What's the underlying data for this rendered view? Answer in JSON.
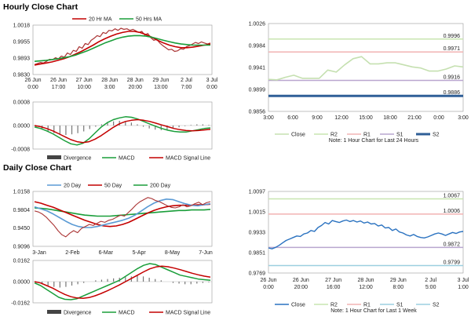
{
  "sections": {
    "hourly_title": "Hourly Close Chart",
    "daily_title": "Daily Close Chart"
  },
  "colors": {
    "close": "#aa3333",
    "ma_short": "#c40000",
    "ma_long": "#1a9e3a",
    "macd": "#1a9e3a",
    "signal": "#c40000",
    "divergence": "#777777",
    "light_close": "#c5e0b0",
    "r2": "#c8e6b0",
    "r1": "#f2b3b3",
    "s1": "#b9a6cf",
    "s2": "#2f5f97",
    "blue_line": "#2a72c0",
    "blue_ma": "#5b9bd5"
  },
  "chart_data": [
    {
      "id": "hourly-price",
      "type": "line",
      "title": "Hourly Close Chart",
      "legend": [
        "20 Hr MA",
        "50 Hrs MA"
      ],
      "x_tick_labels": [
        [
          "26 Jun",
          "0:00"
        ],
        [
          "26 Jun",
          "17:00"
        ],
        [
          "27 Jun",
          "10:00"
        ],
        [
          "28 Jun",
          "3:00"
        ],
        [
          "28 Jun",
          "20:00"
        ],
        [
          "29 Jun",
          "13:00"
        ],
        [
          "2 Jul",
          "7:00"
        ],
        [
          "3 Jul",
          "0:00"
        ]
      ],
      "y_tick_labels": [
        "1.0018",
        "0.9955",
        "0.9893",
        "0.9830"
      ],
      "ylim": [
        0.983,
        1.0018
      ],
      "series": [
        {
          "name": "Close",
          "values": [
            0.9868,
            0.9872,
            0.9876,
            0.9874,
            0.988,
            0.9888,
            0.9886,
            0.9894,
            0.989,
            0.99,
            0.9896,
            0.9912,
            0.9906,
            0.9922,
            0.9918,
            0.9936,
            0.993,
            0.9948,
            0.9944,
            0.996,
            0.9968,
            0.9978,
            0.9974,
            0.999,
            0.9986,
            0.9998,
            0.9996,
            1.0004,
            0.9998,
            1.0006,
            1.0002,
            1.0004,
            0.9998,
            1.0002,
            0.9996,
            0.999,
            0.9994,
            0.998,
            0.9986,
            0.997,
            0.996,
            0.9964,
            0.995,
            0.994,
            0.9932,
            0.9924,
            0.9926,
            0.9918,
            0.992,
            0.9928,
            0.9926,
            0.9936,
            0.994,
            0.9946,
            0.9952,
            0.9948,
            0.9954,
            0.995,
            0.9946,
            0.995
          ]
        },
        {
          "name": "20 Hr MA",
          "values": [
            0.9866,
            0.987,
            0.9874,
            0.9878,
            0.9884,
            0.989,
            0.9898,
            0.9908,
            0.9918,
            0.993,
            0.9942,
            0.9955,
            0.9966,
            0.9976,
            0.9984,
            0.999,
            0.9994,
            0.9994,
            0.999,
            0.9982,
            0.9972,
            0.996,
            0.995,
            0.9942,
            0.9936,
            0.9932,
            0.9932,
            0.9934,
            0.9938,
            0.9942,
            0.9946
          ]
        },
        {
          "name": "50 Hrs MA",
          "values": [
            0.988,
            0.9882,
            0.9884,
            0.9887,
            0.989,
            0.9894,
            0.9898,
            0.9904,
            0.9912,
            0.992,
            0.993,
            0.994,
            0.995,
            0.9958,
            0.9966,
            0.9972,
            0.9976,
            0.9978,
            0.9978,
            0.9976,
            0.9972,
            0.9966,
            0.996,
            0.9955,
            0.995,
            0.9946,
            0.9944,
            0.9942,
            0.9942,
            0.9942,
            0.9942
          ]
        }
      ]
    },
    {
      "id": "hourly-macd",
      "type": "line",
      "y_tick_labels": [
        "0.0008",
        "0.0000",
        "-0.0008"
      ],
      "ylim": [
        -0.0008,
        0.0008
      ],
      "legend": [
        "Divergence",
        "MACD",
        "MACD Signal Line"
      ],
      "series": [
        {
          "name": "Divergence",
          "values": [
            -5e-05,
            -0.00012,
            -0.0002,
            -0.00026,
            -0.0003,
            -0.00032,
            -0.0003,
            -0.00026,
            -0.0002,
            -0.00012,
            -4e-05,
            4e-05,
            0.0001,
            0.00014,
            0.00016,
            0.00014,
            0.0001,
            4e-05,
            -4e-05,
            -0.0001,
            -0.00014,
            -0.00016,
            -0.00014,
            -0.0001,
            -6e-05,
            -2e-05,
            2e-05,
            4e-05,
            4e-05,
            2e-05
          ]
        },
        {
          "name": "MACD",
          "values": [
            -5e-05,
            -0.0001,
            -0.00018,
            -0.00028,
            -0.0004,
            -0.00052,
            -0.00062,
            -0.00066,
            -0.0006,
            -0.00045,
            -0.00025,
            -5e-05,
            0.0001,
            0.0002,
            0.00026,
            0.0003,
            0.00028,
            0.00022,
            0.00014,
            5e-05,
            -3e-05,
            -0.0001,
            -0.00016,
            -0.0002,
            -0.00022,
            -0.00022,
            -0.00018,
            -0.00014,
            -0.0001,
            -8e-05
          ]
        },
        {
          "name": "MACD Signal Line",
          "values": [
            0.0,
            -4e-05,
            -0.0001,
            -0.00018,
            -0.00028,
            -0.00038,
            -0.00048,
            -0.00055,
            -0.00058,
            -0.00055,
            -0.00046,
            -0.00034,
            -0.0002,
            -6e-05,
            6e-05,
            0.00014,
            0.00018,
            0.0002,
            0.00018,
            0.00014,
            8e-05,
            2e-05,
            -4e-05,
            -0.0001,
            -0.00014,
            -0.00017,
            -0.00018,
            -0.00017,
            -0.00015,
            -0.00013
          ]
        }
      ]
    },
    {
      "id": "hourly-pivot",
      "type": "line",
      "title": "Note: 1 Hour Chart for Last 24 Hours",
      "legend": [
        "Close",
        "R2",
        "R1",
        "S1",
        "S2"
      ],
      "x_tick_labels": [
        "3:00",
        "6:00",
        "9:00",
        "12:00",
        "15:00",
        "18:00",
        "21:00",
        "0:00",
        "3:00"
      ],
      "y_tick_labels": [
        "1.0026",
        "0.9984",
        "0.9941",
        "0.9899",
        "0.9856"
      ],
      "ylim": [
        0.9856,
        1.0026
      ],
      "levels": [
        {
          "name": "R2",
          "value": 0.9996,
          "label": "0.9996"
        },
        {
          "name": "R1",
          "value": 0.9971,
          "label": "0.9971"
        },
        {
          "name": "S1",
          "value": 0.9916,
          "label": "0.9916"
        },
        {
          "name": "S2",
          "value": 0.9886,
          "label": "0.9886"
        }
      ],
      "series": [
        {
          "name": "Close",
          "values": [
            0.9918,
            0.9917,
            0.9922,
            0.9926,
            0.992,
            0.992,
            0.992,
            0.9936,
            0.9932,
            0.9946,
            0.9958,
            0.9962,
            0.9948,
            0.9948,
            0.995,
            0.995,
            0.9946,
            0.9942,
            0.994,
            0.9934,
            0.9934,
            0.9938,
            0.9944,
            0.9942
          ]
        }
      ]
    },
    {
      "id": "daily-price",
      "type": "line",
      "title": "Daily Close Chart",
      "legend": [
        "20 Day",
        "50 Day",
        "200 Day"
      ],
      "x_tick_labels": [
        "3-Jan",
        "2-Feb",
        "6-Mar",
        "5-Apr",
        "8-May",
        "7-Jun"
      ],
      "y_tick_labels": [
        "1.0158",
        "0.9804",
        "0.9450",
        "0.9096"
      ],
      "ylim": [
        0.9096,
        1.0158
      ],
      "series": [
        {
          "name": "Close",
          "values": [
            0.978,
            0.976,
            0.972,
            0.966,
            0.958,
            0.95,
            0.94,
            0.932,
            0.928,
            0.935,
            0.94,
            0.936,
            0.944,
            0.948,
            0.952,
            0.95,
            0.954,
            0.958,
            0.956,
            0.96,
            0.962,
            0.966,
            0.97,
            0.968,
            0.975,
            0.982,
            0.99,
            0.996,
            1.0,
            1.004,
            1.002,
            0.998,
            0.996,
            0.992,
            0.988,
            0.985,
            0.984,
            0.986,
            0.99,
            0.986,
            0.988,
            0.992,
            0.995,
            0.99,
            0.994,
            0.996
          ]
        },
        {
          "name": "20 Day",
          "values": [
            0.986,
            0.982,
            0.978,
            0.972,
            0.965,
            0.958,
            0.952,
            0.948,
            0.946,
            0.946,
            0.948,
            0.951,
            0.954,
            0.957,
            0.96,
            0.964,
            0.97,
            0.978,
            0.986,
            0.993,
            0.998,
            1.001,
            1.0,
            0.996,
            0.992,
            0.989,
            0.988,
            0.99,
            0.992
          ]
        },
        {
          "name": "50 Day",
          "values": [
            0.996,
            0.993,
            0.989,
            0.985,
            0.98,
            0.975,
            0.97,
            0.965,
            0.96,
            0.956,
            0.952,
            0.949,
            0.948,
            0.949,
            0.952,
            0.956,
            0.962,
            0.968,
            0.974,
            0.979,
            0.983,
            0.986,
            0.988,
            0.989,
            0.989,
            0.989,
            0.99,
            0.99,
            0.991
          ]
        },
        {
          "name": "200 Day",
          "values": [
            0.984,
            0.983,
            0.982,
            0.98,
            0.978,
            0.976,
            0.974,
            0.972,
            0.97,
            0.969,
            0.968,
            0.968,
            0.968,
            0.969,
            0.97,
            0.971,
            0.972,
            0.973,
            0.974,
            0.975,
            0.976,
            0.977,
            0.978,
            0.979,
            0.979,
            0.98,
            0.98,
            0.98,
            0.981
          ]
        }
      ]
    },
    {
      "id": "daily-macd",
      "type": "line",
      "y_tick_labels": [
        "0.0162",
        "0.0000",
        "-0.0162"
      ],
      "ylim": [
        -0.0162,
        0.0162
      ],
      "legend": [
        "Divergence",
        "MACD",
        "MACD Signal Line"
      ],
      "series": [
        {
          "name": "Divergence",
          "values": [
            -0.001,
            -0.002,
            -0.003,
            -0.004,
            -0.0045,
            -0.004,
            -0.003,
            -0.002,
            -0.001,
            0.0,
            0.001,
            0.0015,
            0.002,
            0.0025,
            0.003,
            0.0035,
            0.004,
            0.0045,
            0.004,
            0.003,
            0.002,
            0.001,
            0.0,
            -0.001,
            -0.0015,
            -0.002,
            -0.002,
            -0.0015,
            -0.001,
            -0.0005
          ]
        },
        {
          "name": "MACD",
          "values": [
            -0.001,
            -0.003,
            -0.006,
            -0.009,
            -0.012,
            -0.0135,
            -0.0138,
            -0.013,
            -0.011,
            -0.009,
            -0.007,
            -0.005,
            -0.003,
            -0.001,
            0.001,
            0.004,
            0.007,
            0.01,
            0.0125,
            0.0138,
            0.013,
            0.011,
            0.009,
            0.007,
            0.005,
            0.004,
            0.003,
            0.002,
            0.0015,
            0.001
          ]
        },
        {
          "name": "MACD Signal Line",
          "values": [
            0.0,
            -0.001,
            -0.003,
            -0.005,
            -0.0075,
            -0.0098,
            -0.0115,
            -0.0125,
            -0.0128,
            -0.0122,
            -0.0108,
            -0.009,
            -0.007,
            -0.0048,
            -0.0025,
            0.0,
            0.0025,
            0.005,
            0.0075,
            0.0098,
            0.0112,
            0.0118,
            0.0114,
            0.0104,
            0.0092,
            0.0078,
            0.0064,
            0.0052,
            0.0042,
            0.0034
          ]
        }
      ]
    },
    {
      "id": "daily-pivot",
      "type": "line",
      "title": "Note: 1 Hour Chart for Last 1 Week",
      "legend": [
        "Close",
        "R2",
        "R1",
        "S1",
        "S2"
      ],
      "x_tick_labels": [
        [
          "26 Jun",
          "0:00"
        ],
        [
          "26 Jun",
          "20:00"
        ],
        [
          "27 Jun",
          "16:00"
        ],
        [
          "28 Jun",
          "12:00"
        ],
        [
          "29 Jun",
          "8:00"
        ],
        [
          "2 Jul",
          "5:00"
        ],
        [
          "3 Jul",
          "1:00"
        ]
      ],
      "y_tick_labels": [
        "1.0097",
        "1.0015",
        "0.9933",
        "0.9851",
        "0.9769"
      ],
      "ylim": [
        0.9769,
        1.0097
      ],
      "levels": [
        {
          "name": "R2",
          "value": 1.0067,
          "label": "1.0067"
        },
        {
          "name": "R1",
          "value": 1.0006,
          "label": "1.0006"
        },
        {
          "name": "S1",
          "value": 0.9872,
          "label": "0.9872"
        },
        {
          "name": "S2",
          "value": 0.9799,
          "label": "0.9799"
        }
      ],
      "series": [
        {
          "name": "Close",
          "values": [
            0.987,
            0.9866,
            0.9872,
            0.988,
            0.989,
            0.99,
            0.9906,
            0.9912,
            0.9918,
            0.9916,
            0.9926,
            0.993,
            0.994,
            0.9936,
            0.9952,
            0.996,
            0.9972,
            0.9966,
            0.998,
            0.9976,
            0.9972,
            0.9978,
            0.9982,
            0.9976,
            0.998,
            0.9974,
            0.9978,
            0.997,
            0.9974,
            0.9966,
            0.9968,
            0.9958,
            0.9962,
            0.995,
            0.9952,
            0.994,
            0.9946,
            0.9934,
            0.993,
            0.9922,
            0.9918,
            0.9924,
            0.9916,
            0.9912,
            0.991,
            0.9914,
            0.992,
            0.9926,
            0.993,
            0.9926,
            0.992,
            0.9926,
            0.9932,
            0.9928,
            0.9934,
            0.9936
          ]
        }
      ]
    }
  ]
}
